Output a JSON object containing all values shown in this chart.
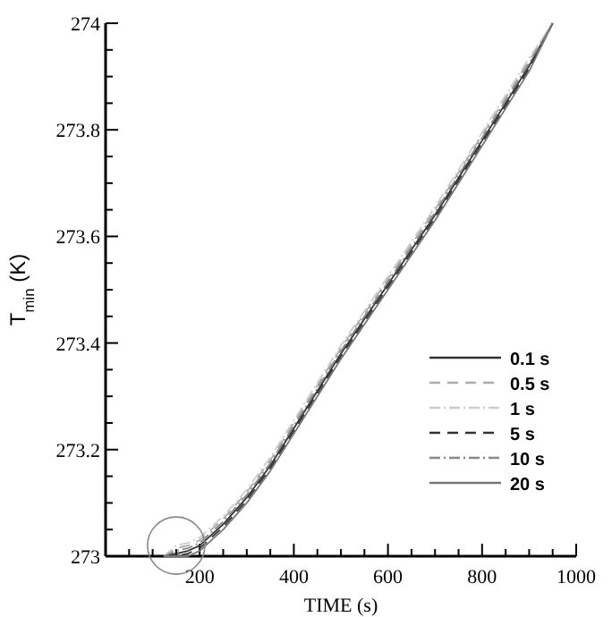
{
  "chart_data": {
    "type": "line",
    "xlabel": "TIME (s)",
    "ylabel": "T$_{min}$ (K)",
    "x": [
      124,
      150,
      175,
      200,
      225,
      250,
      300,
      350,
      400,
      450,
      500,
      600,
      700,
      800,
      900,
      950
    ],
    "series": [
      {
        "name": "0.1 s",
        "color": "#333333",
        "line_style": "solid",
        "values": [
          273.0,
          273.005,
          273.01,
          273.02,
          273.04,
          273.06,
          273.11,
          273.17,
          273.24,
          273.31,
          273.38,
          273.51,
          273.64,
          273.78,
          273.92,
          274.0
        ]
      },
      {
        "name": "0.5 s",
        "color": "#aaaaaa",
        "line_style": "dashed",
        "values": [
          273.0,
          273.015,
          273.02,
          273.03,
          273.05,
          273.07,
          273.12,
          273.18,
          273.25,
          273.32,
          273.39,
          273.52,
          273.65,
          273.79,
          273.93,
          274.0
        ]
      },
      {
        "name": "1 s",
        "color": "#cccccc",
        "line_style": "dotted",
        "values": [
          273.0,
          273.02,
          273.025,
          273.035,
          273.055,
          273.075,
          273.125,
          273.185,
          273.255,
          273.325,
          273.395,
          273.525,
          273.655,
          273.795,
          273.935,
          274.0
        ]
      },
      {
        "name": "5 s",
        "color": "#333333",
        "line_style": "dashed",
        "values": [
          273.0,
          273.0,
          273.005,
          273.015,
          273.035,
          273.055,
          273.105,
          273.165,
          273.235,
          273.305,
          273.375,
          273.505,
          273.635,
          273.775,
          273.915,
          274.0
        ]
      },
      {
        "name": "10 s",
        "color": "#888888",
        "line_style": "dotted",
        "values": [
          273.0,
          273.01,
          273.015,
          273.025,
          273.045,
          273.065,
          273.115,
          273.175,
          273.245,
          273.315,
          273.385,
          273.515,
          273.645,
          273.785,
          273.925,
          274.0
        ]
      },
      {
        "name": "20 s",
        "color": "#777777",
        "line_style": "solid",
        "values": [
          273.0,
          273.0,
          273.0,
          273.01,
          273.03,
          273.05,
          273.1,
          273.16,
          273.23,
          273.3,
          273.37,
          273.5,
          273.63,
          273.77,
          273.91,
          274.0
        ]
      }
    ],
    "xlim": [
      0,
      1000
    ],
    "xticks": [
      {
        "value": 50,
        "label": null
      },
      {
        "value": 100,
        "label": null
      },
      {
        "value": 150,
        "label": null
      },
      200,
      {
        "value": 250,
        "label": null
      },
      {
        "value": 300,
        "label": null
      },
      {
        "value": 350,
        "label": null
      },
      400,
      {
        "value": 450,
        "label": null
      },
      {
        "value": 500,
        "label": null
      },
      {
        "value": 550,
        "label": null
      },
      600,
      {
        "value": 650,
        "label": null
      },
      {
        "value": 700,
        "label": null
      },
      {
        "value": 750,
        "label": null
      },
      800,
      {
        "value": 850,
        "label": null
      },
      {
        "value": 900,
        "label": null
      },
      {
        "value": 950,
        "label": null
      },
      1000
    ],
    "ylim": [
      273,
      274
    ],
    "yticks": [
      273,
      {
        "value": 273.05,
        "label": null
      },
      {
        "value": 273.1,
        "label": null
      },
      {
        "value": 273.15,
        "label": null
      },
      273.2,
      {
        "value": 273.25,
        "label": null
      },
      {
        "value": 273.3,
        "label": null
      },
      {
        "value": 273.35,
        "label": null
      },
      273.4,
      {
        "value": 273.45,
        "label": null
      },
      {
        "value": 273.5,
        "label": null
      },
      {
        "value": 273.55,
        "label": null
      },
      273.6,
      {
        "value": 273.65,
        "label": null
      },
      {
        "value": 273.7,
        "label": null
      },
      {
        "value": 273.75,
        "label": null
      },
      273.8,
      {
        "value": 273.85,
        "label": null
      },
      {
        "value": 273.9,
        "label": null
      },
      {
        "value": 273.95,
        "label": null
      },
      274
    ],
    "grid": false,
    "legend": "right",
    "marker": "none"
  }
}
